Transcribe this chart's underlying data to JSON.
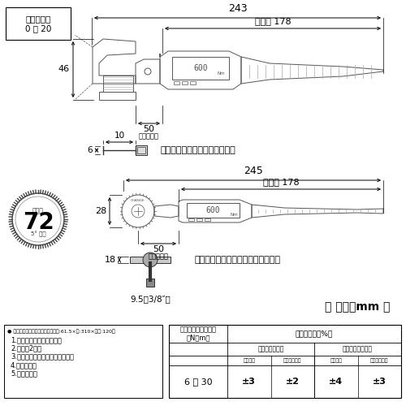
{
  "bg_color": "#ffffff",
  "dim_243": "243",
  "dim_245": "245",
  "eff_178": "有効長 178",
  "head_eff": "頭部有効長",
  "mouth_label": "口開き寸法\n0 〜 20",
  "dim_46": "46",
  "dim_50": "50",
  "dim_10": "10",
  "dim_6": "6",
  "dim_28": "28",
  "dim_18": "18",
  "dim_50b": "50",
  "dim_9_5": "9.5（3/8″）",
  "monkey_label": "モンキ形トルクヘッドセット時",
  "ratchet_label": "ラチェット形トルクヘッドセット時",
  "gear_label": "ギア数",
  "gear_num": "72",
  "gear_sub": "5° 送り",
  "unit_label": "【 単位：mm 】",
  "set_title": "● セット内容（専用ケース付　高さ:61.5×幅:310×奥行:120）",
  "set_body": "1.本品（トルクハンドル）\n2.電池（2本）\n3.バッテリーカバー用ドライバー\n4.校正証明書\n5.取扱説明書",
  "tc1": "トルク精度保証範囲\n（N・m）",
  "tc2": "トルク精度（%）",
  "ts1": "時計回り（右）",
  "ts2": "反時計回り（左）",
  "ts1a": "モンキ形",
  "ts1b": "ラチェット形",
  "ts2a": "モンキ形",
  "ts2b": "ラチェット形",
  "tr": "6 〜 30",
  "tv1": "±3",
  "tv2": "±2",
  "tv3": "±4",
  "tv4": "±3",
  "lc": "#333333",
  "tc": "#000000"
}
